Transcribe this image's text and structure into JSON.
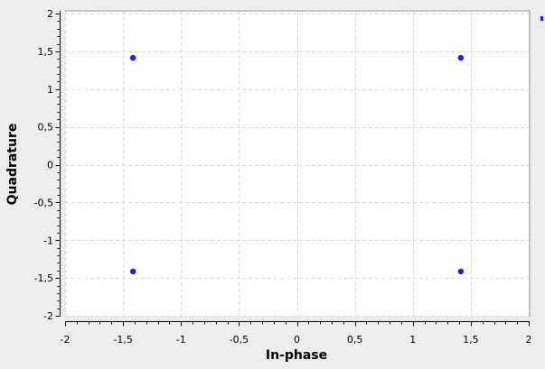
{
  "chart_data": {
    "type": "scatter",
    "xlabel": "In-phase",
    "ylabel": "Quadrature",
    "xlim": [
      -2,
      2
    ],
    "ylim": [
      -2,
      2
    ],
    "grid": true,
    "x_ticks": [
      "-2",
      "-1,5",
      "-1",
      "-0,5",
      "0",
      "0,5",
      "1",
      "1,5",
      "2"
    ],
    "y_ticks": [
      "2",
      "1,5",
      "1",
      "0,5",
      "0",
      "-0,5",
      "-1",
      "-1,5",
      "-2"
    ],
    "series": [
      {
        "x": [
          -1.414,
          1.414,
          -1.414,
          1.414
        ],
        "y": [
          1.414,
          1.414,
          -1.414,
          -1.414
        ]
      }
    ],
    "colors": {
      "point": "#1a1aff",
      "grid": "#d9d9d9",
      "plot_background": "#ffffff",
      "frame": "#9a9a9a"
    }
  }
}
